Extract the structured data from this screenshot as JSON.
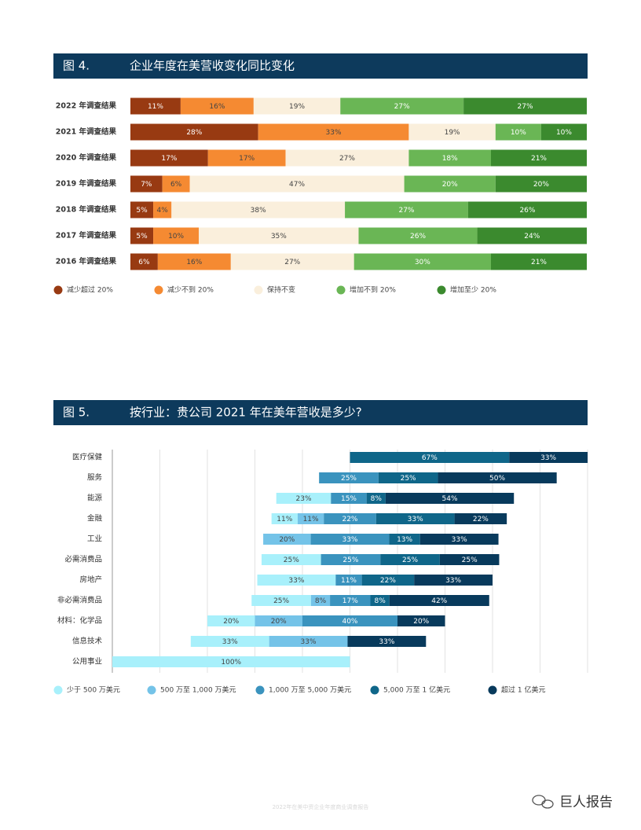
{
  "chart_data": [
    {
      "type": "stacked_hbar",
      "figure": "图 4.",
      "title": "企业年度在美营收变化同比变化",
      "categories": [
        "2022 年调查结果",
        "2021 年调查结果",
        "2020 年调查结果",
        "2019 年调查结果",
        "2018 年调查结果",
        "2017 年调查结果",
        "2016 年调查结果"
      ],
      "xlim": [
        0,
        100
      ],
      "series": [
        {
          "name": "减少超过 20%",
          "color": "#983a12",
          "values": [
            11,
            28,
            17,
            7,
            5,
            5,
            6
          ],
          "value_labels": [
            "11%",
            "28%",
            "17%",
            "7%",
            "5%",
            "5%",
            "6%"
          ]
        },
        {
          "name": "减少不到 20%",
          "color": "#f58a32",
          "values": [
            16,
            33,
            17,
            6,
            4,
            10,
            16
          ],
          "value_labels": [
            "16%",
            "33%",
            "17%",
            "6%",
            "4%",
            "10%",
            "16%"
          ]
        },
        {
          "name": "保持不变",
          "color": "#faefdc",
          "values": [
            19,
            19,
            27,
            47,
            38,
            35,
            27
          ],
          "value_labels": [
            "19%",
            "19%",
            "27%",
            "47%",
            "38%",
            "35%",
            "27%"
          ]
        },
        {
          "name": "增加不到 20%",
          "color": "#6ab655",
          "values": [
            27,
            10,
            18,
            20,
            27,
            26,
            30
          ],
          "value_labels": [
            "27%",
            "10%",
            "18%",
            "20%",
            "27%",
            "26%",
            "30%"
          ]
        },
        {
          "name": "增加至少 20%",
          "color": "#3b8a2e",
          "values": [
            27,
            10,
            21,
            20,
            26,
            24,
            21
          ],
          "value_labels": [
            "27%",
            "10%",
            "21%",
            "20%",
            "26%",
            "24%",
            "21%"
          ]
        }
      ]
    },
    {
      "type": "stacked_hbar",
      "figure": "图 5.",
      "title": "按行业：贵公司 2021 年在美年营收是多少?",
      "categories": [
        "医疗保健",
        "服务",
        "能源",
        "金融",
        "工业",
        "必需消费品",
        "房地产",
        "非必需消费品",
        "材料：化学品",
        "信息技术",
        "公用事业"
      ],
      "xlim": [
        0,
        200
      ],
      "xticks": [
        0,
        20,
        40,
        60,
        80,
        100,
        120,
        140,
        160,
        180,
        200
      ],
      "grid": true,
      "offsets": [
        100,
        87,
        69,
        67,
        63.5,
        62.8,
        61,
        58.6,
        40,
        33,
        0
      ],
      "series": [
        {
          "name": "少于 500 万美元",
          "color": "#a8f0fb",
          "values": [
            null,
            null,
            23,
            11,
            null,
            25,
            33,
            25,
            20,
            33,
            100
          ],
          "value_labels": [
            null,
            null,
            "23%",
            "11%",
            null,
            "25%",
            "33%",
            "25%",
            "20%",
            "33%",
            "100%"
          ]
        },
        {
          "name": "500 万至 1,000 万美元",
          "color": "#74c3e8",
          "values": [
            null,
            null,
            null,
            11,
            20,
            null,
            null,
            8,
            20,
            33,
            null
          ],
          "value_labels": [
            null,
            null,
            null,
            "11%",
            "20%",
            null,
            null,
            "8%",
            "20%",
            "33%",
            null
          ]
        },
        {
          "name": "1,000 万至 5,000 万美元",
          "color": "#3a93be",
          "values": [
            null,
            25,
            15,
            22,
            33,
            25,
            11,
            17,
            40,
            null,
            null
          ],
          "value_labels": [
            null,
            "25%",
            "15%",
            "22%",
            "33%",
            "25%",
            "11%",
            "17%",
            "40%",
            null,
            null
          ]
        },
        {
          "name": "5,000 万至 1 亿美元",
          "color": "#0f6689",
          "values": [
            67,
            25,
            8,
            33,
            13,
            25,
            22,
            8,
            null,
            null,
            null
          ],
          "value_labels": [
            "67%",
            "25%",
            "8%",
            "33%",
            "13%",
            "25%",
            "22%",
            "8%",
            null,
            null,
            null
          ]
        },
        {
          "name": "超过 1 亿美元",
          "color": "#083a5c",
          "values": [
            33,
            50,
            54,
            22,
            33,
            25,
            33,
            42,
            20,
            33,
            null
          ],
          "value_labels": [
            "33%",
            "50%",
            "54%",
            "22%",
            "33%",
            "25%",
            "33%",
            "42%",
            "20%",
            "33%",
            null
          ]
        }
      ]
    }
  ],
  "footer": "2022年在美中资企业年度商业调查报告",
  "watermark": "巨人报告"
}
